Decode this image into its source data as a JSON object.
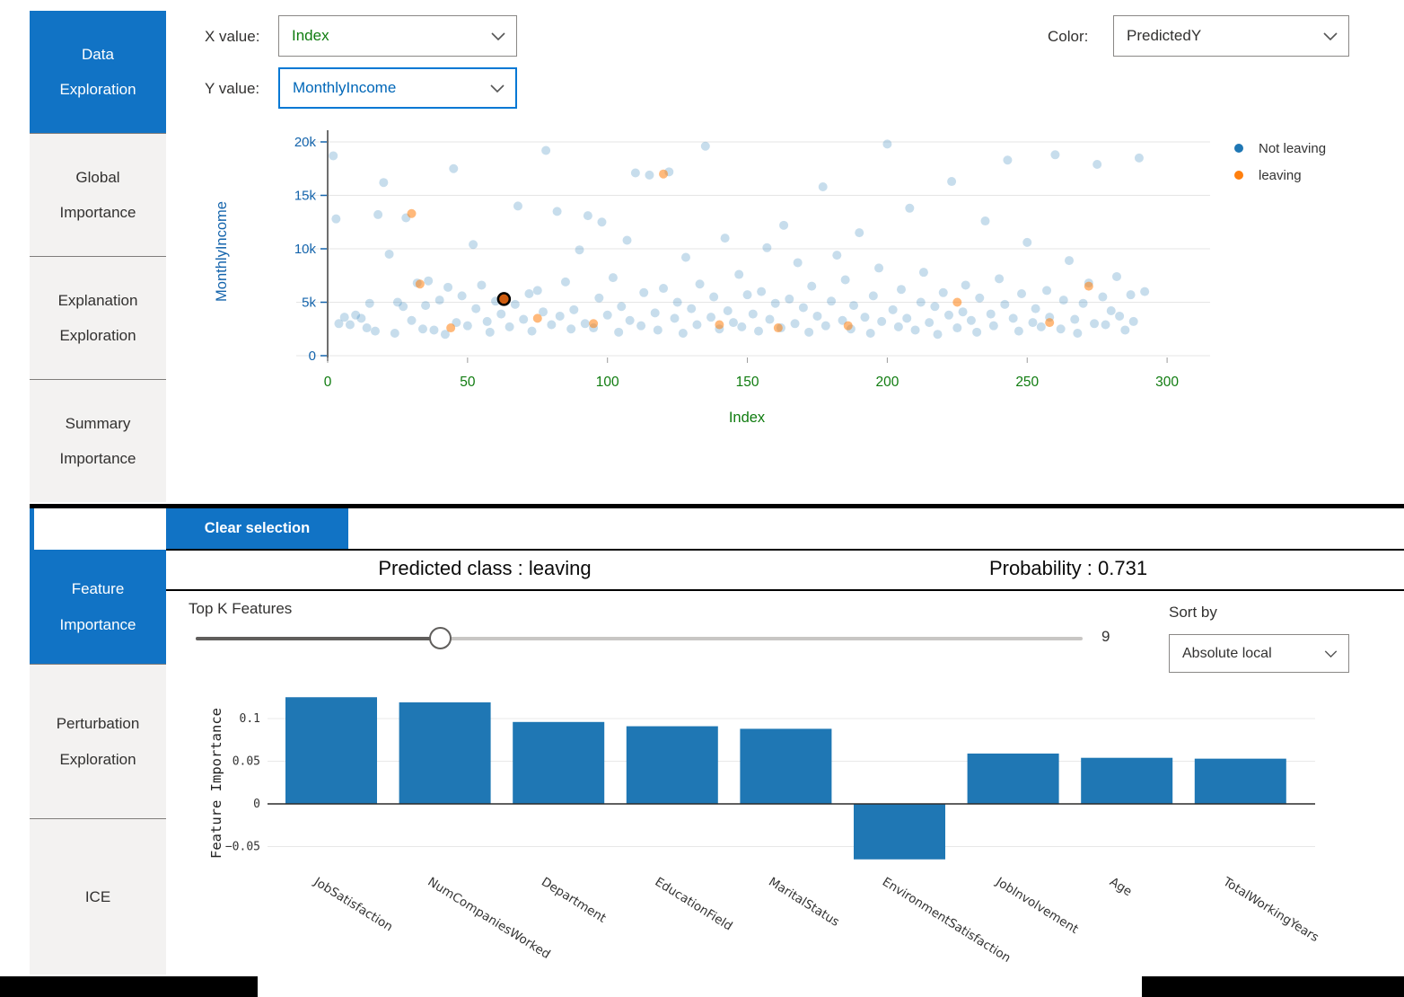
{
  "top_panel": {
    "sidebar": {
      "items": [
        {
          "label": "Data Exploration",
          "active": true
        },
        {
          "label": "Global Importance",
          "active": false
        },
        {
          "label": "Explanation Exploration",
          "active": false
        },
        {
          "label": "Summary Importance",
          "active": false
        }
      ]
    },
    "controls": {
      "x_label": "X value:",
      "x_value": "Index",
      "y_label": "Y value:",
      "y_value": "MonthlyIncome",
      "color_label": "Color:",
      "color_value": "PredictedY"
    }
  },
  "bottom_panel": {
    "sidebar": {
      "items": [
        {
          "label": "Feature Importance",
          "active": true
        },
        {
          "label": "Perturbation Exploration",
          "active": false
        },
        {
          "label": "ICE",
          "active": false
        }
      ]
    },
    "clear_selection_label": "Clear selection",
    "predicted_class_text": "Predicted class : leaving",
    "probability_text": "Probability : 0.731",
    "top_k_label": "Top K Features",
    "top_k_value": "9",
    "sort_by_label": "Sort by",
    "sort_by_value": "Absolute local"
  },
  "colors": {
    "accent_blue": "#1173c5",
    "focus_blue": "#0078d4",
    "value_blue": "#0067b8",
    "axis_green": "#107c10",
    "axis_blue": "#1464ac",
    "scatter_blue": "#1f77b4",
    "scatter_orange": "#ff7f0e",
    "bar_blue": "#1f77b4",
    "selected_fill": "#cf5c0f"
  },
  "chart_data": [
    {
      "type": "scatter",
      "xlabel": "Index",
      "ylabel": "MonthlyIncome",
      "xlim": [
        -12,
        315
      ],
      "ylim": [
        -600,
        21000
      ],
      "xticks": [
        0,
        50,
        100,
        150,
        200,
        250,
        300
      ],
      "yticks": [
        {
          "v": 0,
          "label": "0"
        },
        {
          "v": 5000,
          "label": "5k"
        },
        {
          "v": 10000,
          "label": "10k"
        },
        {
          "v": 15000,
          "label": "15k"
        },
        {
          "v": 20000,
          "label": "20k"
        }
      ],
      "grid": true,
      "legend_position": "right",
      "legend": [
        {
          "label": "Not leaving",
          "color": "#1f77b4"
        },
        {
          "label": "leaving",
          "color": "#ff7f0e"
        }
      ],
      "selected_point": {
        "x": 63,
        "y": 5300,
        "series": "leaving"
      },
      "series": [
        {
          "name": "Not leaving",
          "color": "#1f77b4",
          "opacity": 0.25,
          "points": [
            [
              2,
              18700
            ],
            [
              3,
              12800
            ],
            [
              4,
              3000
            ],
            [
              6,
              3600
            ],
            [
              8,
              2900
            ],
            [
              10,
              3800
            ],
            [
              12,
              3500
            ],
            [
              14,
              2600
            ],
            [
              15,
              4900
            ],
            [
              17,
              2300
            ],
            [
              18,
              13200
            ],
            [
              20,
              16200
            ],
            [
              22,
              9500
            ],
            [
              24,
              2100
            ],
            [
              25,
              5000
            ],
            [
              27,
              4600
            ],
            [
              28,
              12900
            ],
            [
              30,
              3300
            ],
            [
              32,
              6800
            ],
            [
              34,
              2500
            ],
            [
              35,
              4700
            ],
            [
              36,
              7000
            ],
            [
              38,
              2400
            ],
            [
              40,
              5200
            ],
            [
              42,
              2000
            ],
            [
              43,
              6400
            ],
            [
              45,
              17500
            ],
            [
              46,
              3100
            ],
            [
              48,
              5600
            ],
            [
              50,
              2800
            ],
            [
              52,
              10400
            ],
            [
              53,
              4400
            ],
            [
              55,
              6600
            ],
            [
              57,
              3200
            ],
            [
              58,
              2200
            ],
            [
              60,
              5100
            ],
            [
              62,
              3900
            ],
            [
              65,
              2700
            ],
            [
              67,
              4800
            ],
            [
              68,
              14000
            ],
            [
              70,
              3400
            ],
            [
              72,
              5800
            ],
            [
              73,
              2300
            ],
            [
              75,
              6100
            ],
            [
              77,
              4100
            ],
            [
              78,
              19200
            ],
            [
              80,
              2900
            ],
            [
              82,
              13500
            ],
            [
              83,
              3700
            ],
            [
              85,
              6900
            ],
            [
              87,
              2500
            ],
            [
              88,
              4300
            ],
            [
              90,
              9900
            ],
            [
              92,
              3000
            ],
            [
              93,
              13100
            ],
            [
              95,
              2600
            ],
            [
              97,
              5400
            ],
            [
              98,
              12500
            ],
            [
              100,
              3800
            ],
            [
              102,
              7300
            ],
            [
              104,
              2200
            ],
            [
              105,
              4600
            ],
            [
              107,
              10800
            ],
            [
              108,
              3300
            ],
            [
              110,
              17100
            ],
            [
              112,
              2800
            ],
            [
              113,
              5900
            ],
            [
              115,
              16900
            ],
            [
              117,
              4000
            ],
            [
              118,
              2400
            ],
            [
              120,
              6300
            ],
            [
              122,
              17200
            ],
            [
              124,
              3500
            ],
            [
              125,
              5000
            ],
            [
              127,
              2100
            ],
            [
              128,
              9200
            ],
            [
              130,
              4400
            ],
            [
              132,
              2900
            ],
            [
              133,
              6700
            ],
            [
              135,
              19600
            ],
            [
              137,
              3600
            ],
            [
              138,
              5500
            ],
            [
              140,
              2500
            ],
            [
              142,
              11000
            ],
            [
              143,
              4200
            ],
            [
              145,
              3100
            ],
            [
              147,
              7600
            ],
            [
              148,
              2700
            ],
            [
              150,
              5700
            ],
            [
              152,
              3900
            ],
            [
              154,
              2300
            ],
            [
              155,
              6000
            ],
            [
              157,
              10100
            ],
            [
              158,
              3400
            ],
            [
              160,
              4900
            ],
            [
              162,
              2600
            ],
            [
              163,
              12200
            ],
            [
              165,
              5300
            ],
            [
              167,
              3000
            ],
            [
              168,
              8700
            ],
            [
              170,
              4500
            ],
            [
              172,
              2200
            ],
            [
              173,
              6500
            ],
            [
              175,
              3700
            ],
            [
              177,
              15800
            ],
            [
              178,
              2800
            ],
            [
              180,
              5100
            ],
            [
              182,
              9400
            ],
            [
              184,
              3300
            ],
            [
              185,
              7100
            ],
            [
              187,
              2500
            ],
            [
              188,
              4700
            ],
            [
              190,
              11500
            ],
            [
              192,
              3600
            ],
            [
              194,
              2100
            ],
            [
              195,
              5600
            ],
            [
              197,
              8200
            ],
            [
              198,
              3200
            ],
            [
              200,
              19800
            ],
            [
              202,
              4300
            ],
            [
              204,
              2700
            ],
            [
              205,
              6200
            ],
            [
              207,
              3500
            ],
            [
              208,
              13800
            ],
            [
              210,
              2400
            ],
            [
              212,
              5000
            ],
            [
              213,
              7800
            ],
            [
              215,
              3100
            ],
            [
              217,
              4600
            ],
            [
              218,
              2000
            ],
            [
              220,
              5900
            ],
            [
              222,
              3800
            ],
            [
              223,
              16300
            ],
            [
              225,
              2600
            ],
            [
              227,
              4100
            ],
            [
              228,
              6600
            ],
            [
              230,
              3300
            ],
            [
              232,
              2200
            ],
            [
              233,
              5400
            ],
            [
              235,
              12600
            ],
            [
              237,
              3900
            ],
            [
              238,
              2800
            ],
            [
              240,
              7200
            ],
            [
              242,
              4800
            ],
            [
              243,
              18300
            ],
            [
              245,
              3500
            ],
            [
              247,
              2300
            ],
            [
              248,
              5800
            ],
            [
              250,
              10600
            ],
            [
              252,
              3100
            ],
            [
              253,
              4400
            ],
            [
              255,
              2700
            ],
            [
              257,
              6100
            ],
            [
              258,
              3600
            ],
            [
              260,
              18800
            ],
            [
              262,
              2500
            ],
            [
              263,
              5200
            ],
            [
              265,
              8900
            ],
            [
              267,
              3400
            ],
            [
              268,
              2100
            ],
            [
              270,
              4900
            ],
            [
              272,
              6800
            ],
            [
              274,
              3000
            ],
            [
              275,
              17900
            ],
            [
              277,
              5500
            ],
            [
              278,
              2900
            ],
            [
              280,
              4200
            ],
            [
              282,
              7400
            ],
            [
              283,
              3700
            ],
            [
              285,
              2400
            ],
            [
              287,
              5700
            ],
            [
              288,
              3200
            ],
            [
              290,
              18500
            ],
            [
              292,
              6000
            ]
          ]
        },
        {
          "name": "leaving",
          "color": "#ff7f0e",
          "opacity": 0.55,
          "points": [
            [
              30,
              13300
            ],
            [
              33,
              6700
            ],
            [
              44,
              2600
            ],
            [
              75,
              3500
            ],
            [
              95,
              3000
            ],
            [
              120,
              17000
            ],
            [
              140,
              2900
            ],
            [
              161,
              2600
            ],
            [
              186,
              2800
            ],
            [
              225,
              5000
            ],
            [
              258,
              3100
            ],
            [
              272,
              6500
            ]
          ]
        }
      ]
    },
    {
      "type": "bar",
      "title": "",
      "ylabel": "Feature Importance",
      "categories": [
        "JobSatisfaction",
        "NumCompaniesWorked",
        "Department",
        "EducationField",
        "MaritalStatus",
        "EnvironmentSatisfaction",
        "JobInvolvement",
        "Age",
        "TotalWorkingYears"
      ],
      "values": [
        0.125,
        0.119,
        0.096,
        0.091,
        0.088,
        -0.065,
        0.059,
        0.054,
        0.053
      ],
      "yticks": [
        {
          "v": 0.1,
          "label": "0.1"
        },
        {
          "v": 0.05,
          "label": "0.05"
        },
        {
          "v": 0,
          "label": "0"
        },
        {
          "v": -0.05,
          "label": "−0.05"
        }
      ],
      "ylim": [
        -0.08,
        0.14
      ],
      "grid": true,
      "bar_color": "#1f77b4"
    }
  ]
}
